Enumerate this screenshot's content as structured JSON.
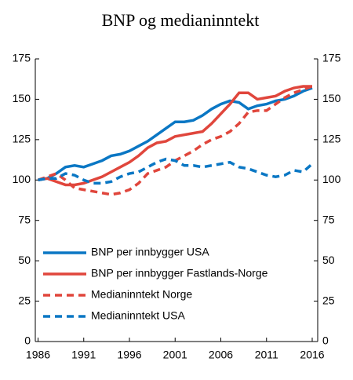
{
  "chart_data": {
    "type": "line",
    "title": "BNP og medianinntekt",
    "x": [
      1986,
      1987,
      1988,
      1989,
      1990,
      1991,
      1992,
      1993,
      1994,
      1995,
      1996,
      1997,
      1998,
      1999,
      2000,
      2001,
      2002,
      2003,
      2004,
      2005,
      2006,
      2007,
      2008,
      2009,
      2010,
      2011,
      2012,
      2013,
      2014,
      2015,
      2016
    ],
    "series": [
      {
        "name": "BNP per innbygger USA",
        "color": "#0a77c4",
        "dash": false,
        "values": [
          100,
          101,
          104,
          108,
          109,
          108,
          110,
          112,
          115,
          116,
          118,
          121,
          124,
          128,
          132,
          136,
          136,
          137,
          140,
          144,
          147,
          149,
          148,
          144,
          146,
          147,
          149,
          150,
          152,
          155,
          157
        ]
      },
      {
        "name": "BNP per innbygger Fastlands-Norge",
        "color": "#e0463c",
        "dash": false,
        "values": [
          100,
          101,
          99,
          97,
          97,
          98,
          100,
          102,
          105,
          108,
          111,
          115,
          120,
          123,
          124,
          127,
          128,
          129,
          130,
          135,
          141,
          147,
          154,
          154,
          150,
          151,
          152,
          155,
          157,
          158,
          158
        ]
      },
      {
        "name": "Medianinntekt Norge",
        "color": "#e0463c",
        "dash": true,
        "values": [
          100,
          102,
          104,
          100,
          95,
          94,
          93,
          92,
          91,
          92,
          94,
          98,
          104,
          106,
          108,
          112,
          115,
          118,
          122,
          125,
          127,
          130,
          135,
          142,
          143,
          143,
          147,
          151,
          154,
          156,
          158
        ]
      },
      {
        "name": "Medianinntekt USA",
        "color": "#0a77c4",
        "dash": true,
        "values": [
          100,
          101,
          101,
          104,
          103,
          100,
          98,
          98,
          99,
          102,
          104,
          105,
          108,
          111,
          113,
          112,
          109,
          109,
          108,
          109,
          110,
          111,
          108,
          107,
          105,
          103,
          102,
          103,
          106,
          105,
          110
        ]
      }
    ],
    "xlim": [
      1985.7,
      2016.6
    ],
    "xticks": [
      1986,
      1991,
      1996,
      2001,
      2006,
      2011,
      2016
    ],
    "ylim": [
      0,
      175
    ],
    "yticks": [
      0,
      25,
      50,
      75,
      100,
      125,
      150,
      175
    ],
    "y2lim": [
      0,
      175
    ],
    "y2ticks": [
      0,
      25,
      50,
      75,
      100,
      125,
      150,
      175
    ]
  }
}
